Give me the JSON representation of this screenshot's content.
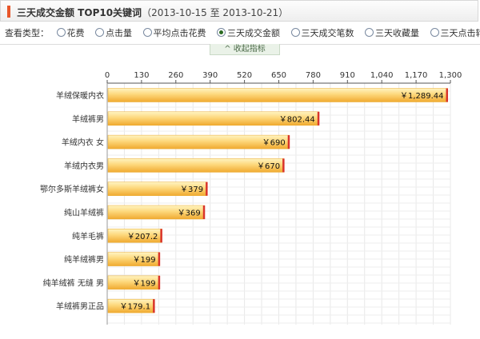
{
  "header": {
    "title": "三天成交金额 TOP10关键词",
    "range": "（2013-10-15 至 2013-10-21）"
  },
  "filter": {
    "label": "查看类型：",
    "options": [
      {
        "label": "花费",
        "selected": false
      },
      {
        "label": "点击量",
        "selected": false
      },
      {
        "label": "平均点击花费",
        "selected": false
      },
      {
        "label": "三天成交金额",
        "selected": true
      },
      {
        "label": "三天成交笔数",
        "selected": false
      },
      {
        "label": "三天收藏量",
        "selected": false
      },
      {
        "label": "三天点击转化率",
        "selected": false
      }
    ]
  },
  "collapse_label": "收起指标",
  "colors": {
    "bar_light": "#fde38d",
    "bar_dark": "#f0b035",
    "bar_cap": "#d9342b",
    "grid": "#e6e6e6"
  },
  "chart_data": {
    "type": "bar",
    "orientation": "horizontal",
    "categories": [
      "羊绒保暖内衣",
      "羊绒裤男",
      "羊绒内衣 女",
      "羊绒内衣男",
      "鄂尔多斯羊绒裤女",
      "纯山羊绒裤",
      "纯羊毛裤",
      "纯羊绒裤男",
      "纯羊绒裤 无缝 男",
      "羊绒裤男正品"
    ],
    "values": [
      1289.44,
      802.44,
      690,
      670,
      379,
      369,
      207.2,
      199,
      199,
      179.1
    ],
    "value_labels": [
      "￥1,289.44",
      "￥802.44",
      "￥690",
      "￥670",
      "￥379",
      "￥369",
      "￥207.2",
      "￥199",
      "￥199",
      "￥179.1"
    ],
    "ticks": [
      "0",
      "130",
      "260",
      "390",
      "520",
      "650",
      "780",
      "910",
      "1,040",
      "1,170",
      "1,300"
    ],
    "xlim": [
      0,
      1300
    ],
    "grid": true
  }
}
